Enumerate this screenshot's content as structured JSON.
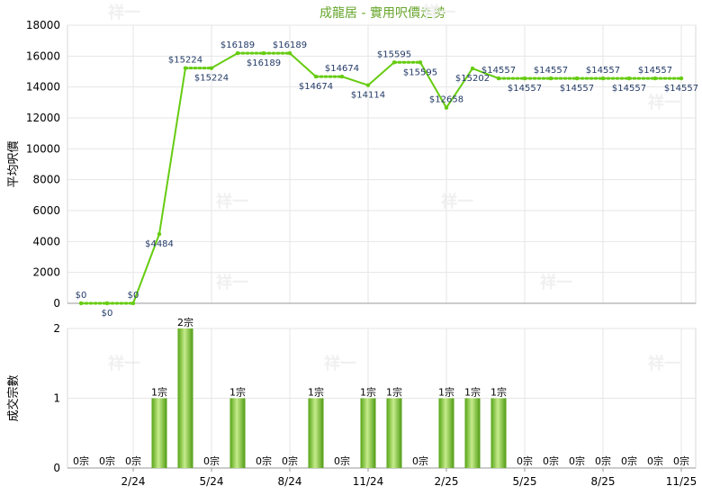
{
  "chart_data": [
    {
      "type": "line",
      "title": "成龍居 - 實用呎價走勢",
      "xlabel": "",
      "ylabel": "平均呎價",
      "ylim": [
        0,
        18000
      ],
      "yticks": [
        0,
        2000,
        4000,
        6000,
        8000,
        10000,
        12000,
        14000,
        16000,
        18000
      ],
      "grid": true,
      "line_color": "#66cc11",
      "series": [
        {
          "values": [
            0,
            0,
            0,
            4484,
            15224,
            15224,
            16189,
            16189,
            16189,
            14674,
            14674,
            14114,
            15595,
            15595,
            12658,
            15202,
            14557,
            14557,
            14557,
            14557,
            14557,
            14557,
            14557,
            14557
          ],
          "labels": [
            "$0",
            "$0",
            "$0",
            "$4484",
            "$15224",
            "$15224",
            "$16189",
            "$16189",
            "$16189",
            "$14674",
            "$14674",
            "$14114",
            "$15595",
            "$15595",
            "$12658",
            "$15202",
            "$14557",
            "$14557",
            "$14557",
            "$14557",
            "$14557",
            "$14557",
            "$14557",
            "$14557"
          ],
          "segment_style": [
            "dotted",
            "dotted",
            "solid",
            "solid",
            "dotted",
            "solid",
            "dotted",
            "dotted",
            "solid",
            "dotted",
            "solid",
            "solid",
            "dotted",
            "solid",
            "solid",
            "solid",
            "dotted",
            "dotted",
            "dotted",
            "dotted",
            "dotted",
            "dotted",
            "dotted"
          ]
        }
      ]
    },
    {
      "type": "bar",
      "xlabel": "",
      "ylabel": "成交宗數",
      "ylim": [
        0,
        2
      ],
      "yticks": [
        0,
        1,
        2
      ],
      "grid": true,
      "bar_color": "#66bb22",
      "values": [
        0,
        0,
        0,
        1,
        2,
        0,
        1,
        0,
        0,
        1,
        0,
        1,
        1,
        0,
        1,
        1,
        1,
        0,
        0,
        0,
        0,
        0,
        0,
        0
      ],
      "labels": [
        "0宗",
        "0宗",
        "0宗",
        "1宗",
        "2宗",
        "0宗",
        "1宗",
        "0宗",
        "0宗",
        "1宗",
        "0宗",
        "1宗",
        "1宗",
        "0宗",
        "1宗",
        "1宗",
        "1宗",
        "0宗",
        "0宗",
        "0宗",
        "0宗",
        "0宗",
        "0宗",
        "0宗"
      ],
      "x_tick_labels": [
        "2/24",
        "5/24",
        "8/24",
        "11/24",
        "2/25",
        "5/25",
        "8/25",
        "11/25"
      ],
      "x_tick_positions": [
        2,
        5,
        8,
        11,
        14,
        17,
        20,
        23
      ]
    }
  ],
  "watermark": "祥一"
}
